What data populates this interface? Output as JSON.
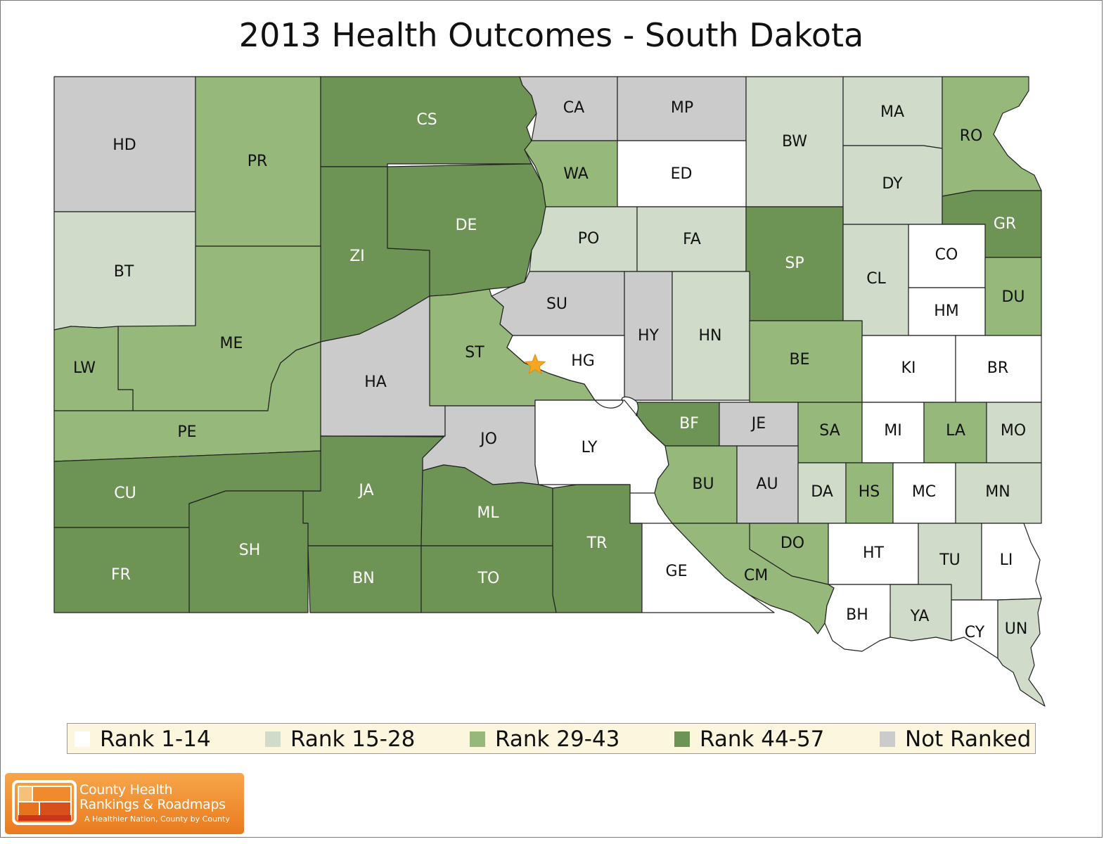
{
  "title": "2013 Health Outcomes - South Dakota",
  "colors": {
    "rank_1_14": "#ffffff",
    "rank_15_28": "#d0dcc9",
    "rank_29_43": "#96b87b",
    "rank_44_57": "#6e9455",
    "not_ranked": "#cbcbcb",
    "marker": "#f5a623"
  },
  "legend": [
    {
      "label": "Rank 1-14",
      "color": "#ffffff"
    },
    {
      "label": "Rank 15-28",
      "color": "#d0dcc9"
    },
    {
      "label": "Rank 29-43",
      "color": "#96b87b"
    },
    {
      "label": "Rank 44-57",
      "color": "#6e9455"
    },
    {
      "label": "Not Ranked",
      "color": "#cbcbcb"
    }
  ],
  "counties": [
    {
      "code": "HD",
      "category": "Not Ranked"
    },
    {
      "code": "PR",
      "category": "Rank 29-43"
    },
    {
      "code": "CS",
      "category": "Rank 44-57"
    },
    {
      "code": "CA",
      "category": "Not Ranked"
    },
    {
      "code": "MP",
      "category": "Not Ranked"
    },
    {
      "code": "BW",
      "category": "Rank 15-28"
    },
    {
      "code": "MA",
      "category": "Rank 15-28"
    },
    {
      "code": "RO",
      "category": "Rank 29-43"
    },
    {
      "code": "WA",
      "category": "Rank 29-43"
    },
    {
      "code": "ED",
      "category": "Rank 1-14"
    },
    {
      "code": "DY",
      "category": "Rank 15-28"
    },
    {
      "code": "BT",
      "category": "Rank 15-28"
    },
    {
      "code": "ZI",
      "category": "Rank 44-57"
    },
    {
      "code": "DE",
      "category": "Rank 44-57"
    },
    {
      "code": "PO",
      "category": "Rank 15-28"
    },
    {
      "code": "FA",
      "category": "Rank 15-28"
    },
    {
      "code": "SP",
      "category": "Rank 44-57"
    },
    {
      "code": "GR",
      "category": "Rank 44-57"
    },
    {
      "code": "CO",
      "category": "Rank 1-14"
    },
    {
      "code": "CL",
      "category": "Rank 15-28"
    },
    {
      "code": "DU",
      "category": "Rank 29-43"
    },
    {
      "code": "HM",
      "category": "Rank 1-14"
    },
    {
      "code": "SU",
      "category": "Not Ranked"
    },
    {
      "code": "ME",
      "category": "Rank 29-43"
    },
    {
      "code": "HY",
      "category": "Not Ranked"
    },
    {
      "code": "HN",
      "category": "Rank 15-28"
    },
    {
      "code": "ST",
      "category": "Rank 29-43"
    },
    {
      "code": "HG",
      "category": "Rank 1-14"
    },
    {
      "code": "BE",
      "category": "Rank 29-43"
    },
    {
      "code": "LW",
      "category": "Rank 29-43"
    },
    {
      "code": "KI",
      "category": "Rank 1-14"
    },
    {
      "code": "BR",
      "category": "Rank 1-14"
    },
    {
      "code": "HA",
      "category": "Not Ranked"
    },
    {
      "code": "PE",
      "category": "Rank 29-43"
    },
    {
      "code": "BF",
      "category": "Rank 44-57"
    },
    {
      "code": "JE",
      "category": "Not Ranked"
    },
    {
      "code": "SA",
      "category": "Rank 29-43"
    },
    {
      "code": "MI",
      "category": "Rank 1-14"
    },
    {
      "code": "LA",
      "category": "Rank 29-43"
    },
    {
      "code": "MO",
      "category": "Rank 15-28"
    },
    {
      "code": "JO",
      "category": "Not Ranked"
    },
    {
      "code": "LY",
      "category": "Rank 1-14"
    },
    {
      "code": "JA",
      "category": "Rank 44-57"
    },
    {
      "code": "CU",
      "category": "Rank 44-57"
    },
    {
      "code": "BU",
      "category": "Rank 29-43"
    },
    {
      "code": "AU",
      "category": "Not Ranked"
    },
    {
      "code": "DA",
      "category": "Rank 15-28"
    },
    {
      "code": "HS",
      "category": "Rank 29-43"
    },
    {
      "code": "MC",
      "category": "Rank 1-14"
    },
    {
      "code": "MN",
      "category": "Rank 15-28"
    },
    {
      "code": "ML",
      "category": "Rank 44-57"
    },
    {
      "code": "SH",
      "category": "Rank 44-57"
    },
    {
      "code": "TR",
      "category": "Rank 44-57"
    },
    {
      "code": "DO",
      "category": "Rank 29-43"
    },
    {
      "code": "HT",
      "category": "Rank 1-14"
    },
    {
      "code": "TU",
      "category": "Rank 15-28"
    },
    {
      "code": "LI",
      "category": "Rank 1-14"
    },
    {
      "code": "FR",
      "category": "Rank 44-57"
    },
    {
      "code": "BN",
      "category": "Rank 44-57"
    },
    {
      "code": "TO",
      "category": "Rank 44-57"
    },
    {
      "code": "GE",
      "category": "Rank 1-14"
    },
    {
      "code": "CM",
      "category": "Rank 29-43"
    },
    {
      "code": "BH",
      "category": "Rank 1-14"
    },
    {
      "code": "YA",
      "category": "Rank 15-28"
    },
    {
      "code": "CY",
      "category": "Rank 1-14"
    },
    {
      "code": "UN",
      "category": "Rank 15-28"
    }
  ],
  "capital_marker": {
    "icon": "star-icon",
    "county": "HG"
  },
  "logo": {
    "line1": "County Health",
    "line2": "Rankings & Roadmaps",
    "tagline": "A Healthier Nation, County by County",
    "icon": "map-grid-logo"
  }
}
